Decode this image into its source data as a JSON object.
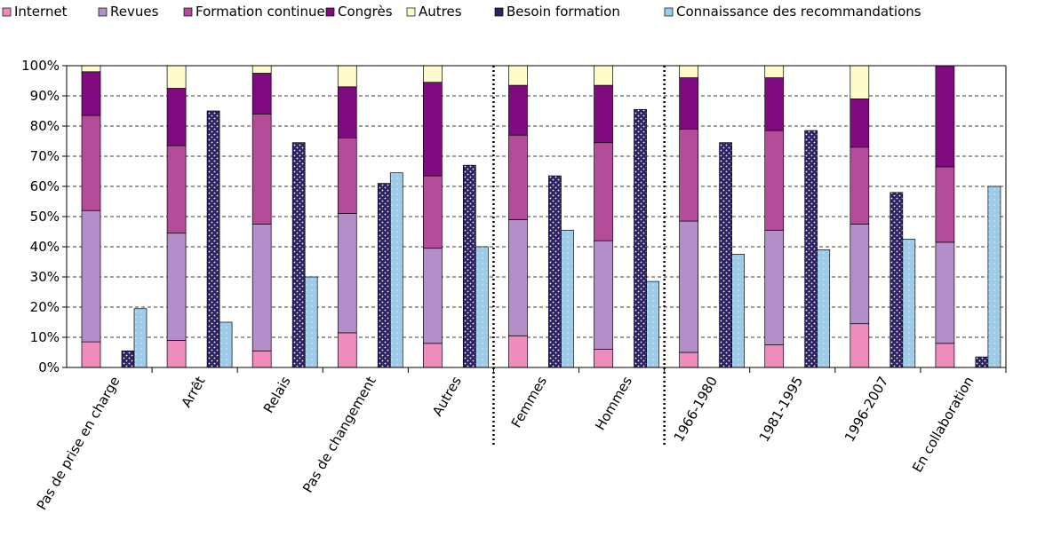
{
  "chart_data": {
    "type": "bar",
    "title": "",
    "xlabel": "",
    "ylabel": "",
    "ylim": [
      0,
      100
    ],
    "yticks": [
      "0%",
      "10%",
      "20%",
      "30%",
      "40%",
      "50%",
      "60%",
      "70%",
      "80%",
      "90%",
      "100%"
    ],
    "grid": "horizontal-dashed",
    "legend_position": "top",
    "separators_after_category": [
      "Autres",
      "Hommes"
    ],
    "categories": [
      "Pas de prise en charge",
      "Arrêt",
      "Relais",
      "Pas de changement",
      "Autres",
      "Femmes",
      "Hommes",
      "1966-1980",
      "1981-1995",
      "1996-2007",
      "En collaboration"
    ],
    "stacked_series": [
      {
        "name": "Internet",
        "color": "#f08cbc",
        "values": [
          8.5,
          9,
          5.5,
          11.5,
          8,
          10.5,
          6,
          5,
          7.5,
          14.5,
          8
        ]
      },
      {
        "name": "Revues",
        "color": "#b48ec8",
        "values": [
          43.5,
          35.5,
          42,
          39.5,
          31.5,
          38.5,
          36,
          43.5,
          38,
          33,
          33.5
        ]
      },
      {
        "name": "Formation continue",
        "color": "#b44c9a",
        "values": [
          31.5,
          29,
          36.5,
          25,
          24,
          28,
          32.5,
          30.5,
          33,
          25.5,
          25
        ]
      },
      {
        "name": "Congrès",
        "color": "#800a80",
        "values": [
          14.5,
          19,
          13.5,
          17,
          31,
          16.5,
          19,
          17,
          17.5,
          16,
          33.5
        ]
      },
      {
        "name": "Autres",
        "color": "#fffccc",
        "values": [
          2,
          7.5,
          2.5,
          7,
          5.5,
          6.5,
          6.5,
          4,
          4,
          11,
          0
        ]
      }
    ],
    "side_series": [
      {
        "name": "Besoin formation",
        "color": "#2e2266",
        "values": [
          5.5,
          85,
          74.5,
          61,
          67,
          63.5,
          85.5,
          74.5,
          78.5,
          58,
          3.5
        ]
      },
      {
        "name": "Connaissance des  recommandations",
        "color": "#9dcbe9",
        "values": [
          19.5,
          15,
          30,
          64.5,
          40,
          45.5,
          28.5,
          37.5,
          39,
          42.5,
          60
        ]
      }
    ]
  }
}
